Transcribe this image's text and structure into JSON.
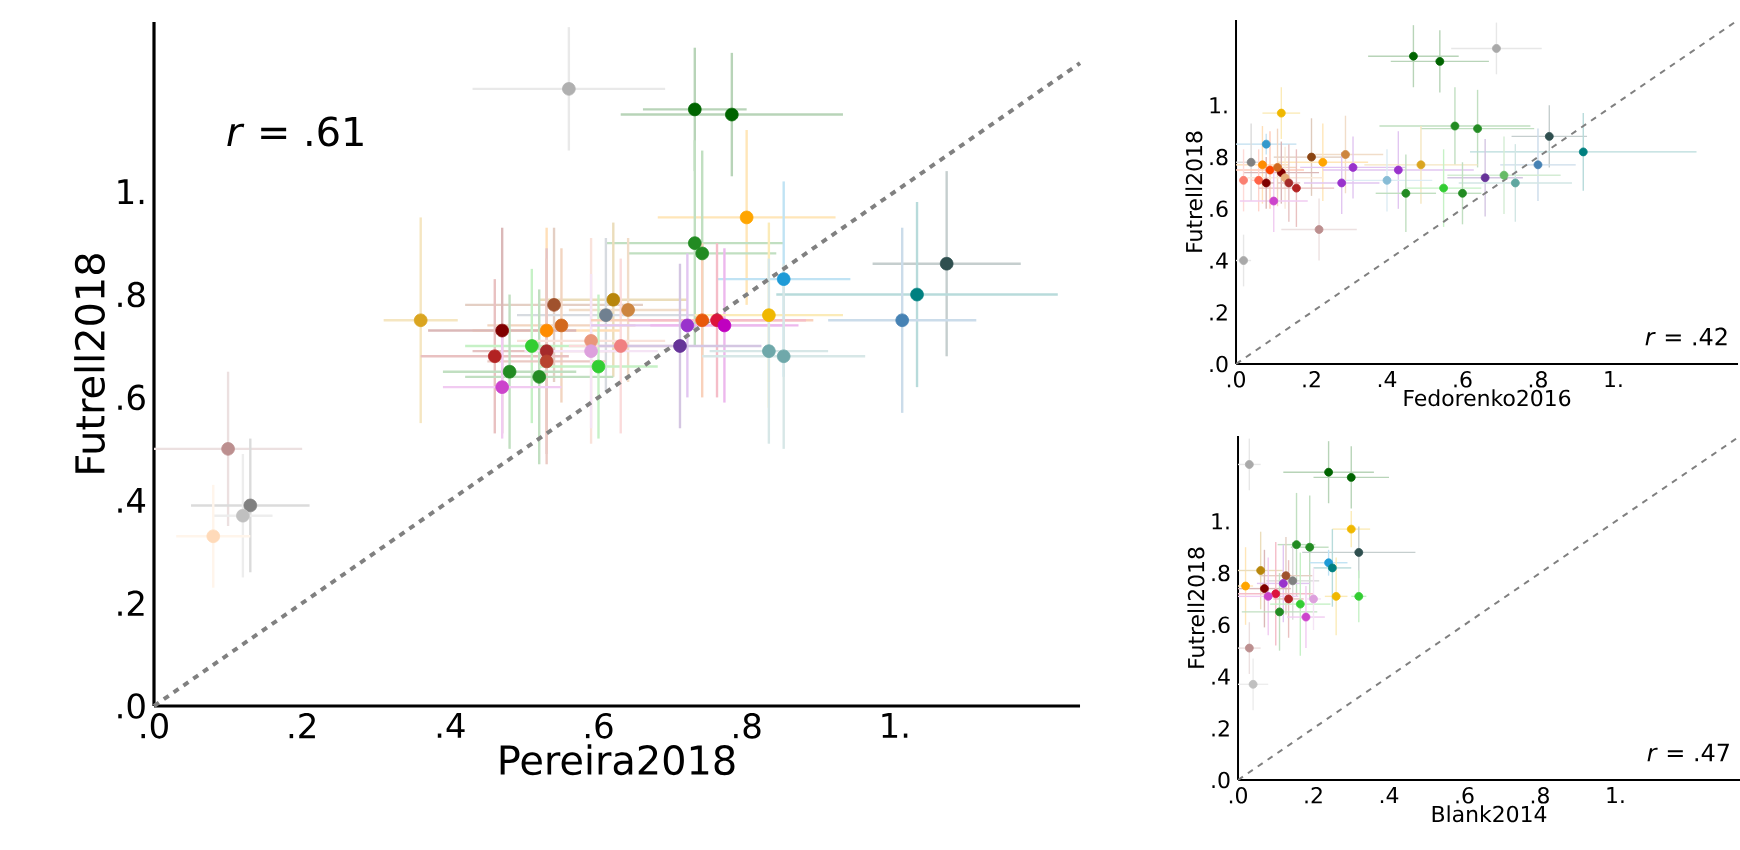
{
  "chart_data": [
    {
      "type": "scatter",
      "xlabel": "Pereira2018",
      "ylabel": "Futrell2018",
      "annotations": [
        "*r* = .61"
      ],
      "xlim": [
        0,
        1.25
      ],
      "ylim": [
        0,
        1.33
      ],
      "marker": "circle",
      "xticks": [
        {
          "value": 0,
          "label": ".0"
        },
        {
          "value": 0.2,
          "label": ".2"
        },
        {
          "value": 0.4,
          "label": ".4"
        },
        {
          "value": 0.6,
          "label": ".6"
        },
        {
          "value": 0.8,
          "label": ".8"
        },
        {
          "value": 1,
          "label": "1."
        }
      ],
      "yticks": [
        {
          "value": 0,
          "label": ".0"
        },
        {
          "value": 0.2,
          "label": ".2"
        },
        {
          "value": 0.4,
          "label": ".4"
        },
        {
          "value": 0.6,
          "label": ".6"
        },
        {
          "value": 0.8,
          "label": ".8"
        },
        {
          "value": 1,
          "label": "1."
        }
      ],
      "series": [
        {
          "x": [
            0.56,
            0.73,
            0.78,
            0.8,
            0.73,
            0.74,
            1.07,
            0.85,
            1.03,
            1.01,
            0.36,
            0.54,
            0.62,
            0.61,
            0.64,
            0.55,
            0.53,
            0.47,
            0.46,
            0.51,
            0.53,
            0.53,
            0.48,
            0.52,
            0.47,
            0.59,
            0.59,
            0.6,
            0.63,
            0.72,
            0.74,
            0.76,
            0.77,
            0.71,
            0.83,
            0.83,
            0.85,
            0.1,
            0.13,
            0.12,
            0.08
          ],
          "values": [
            1.2,
            1.16,
            1.15,
            0.95,
            0.9,
            0.88,
            0.86,
            0.83,
            0.8,
            0.75,
            0.75,
            0.78,
            0.79,
            0.76,
            0.77,
            0.74,
            0.73,
            0.73,
            0.68,
            0.7,
            0.69,
            0.67,
            0.65,
            0.64,
            0.62,
            0.71,
            0.69,
            0.66,
            0.7,
            0.74,
            0.75,
            0.75,
            0.74,
            0.7,
            0.76,
            0.69,
            0.68,
            0.5,
            0.39,
            0.37,
            0.33
          ],
          "colors": [
            "#b0b0b0",
            "#006400",
            "#006400",
            "#ffa500",
            "#228b22",
            "#228b22",
            "#2f4f4f",
            "#1e9bd7",
            "#008080",
            "#4682b4",
            "#daa520",
            "#a0522d",
            "#b8860b",
            "#708090",
            "#cd853f",
            "#d2691e",
            "#ff8c00",
            "#800000",
            "#b22222",
            "#32cd32",
            "#a52a2a",
            "#b8432e",
            "#228b22",
            "#228b22",
            "#cc44cc",
            "#e9967a",
            "#dda0dd",
            "#32cd32",
            "#f08080",
            "#9932cc",
            "#e8590c",
            "#dc143c",
            "#c000c0",
            "#663399",
            "#f0b800",
            "#6fa8aa",
            "#6fa8aa",
            "#bc8f8f",
            "#808080",
            "#c0c0c0",
            "#ffdab9"
          ],
          "xerrors": [
            0.13,
            0.07,
            0.15,
            0.12,
            0.12,
            0.1,
            0.1,
            0.09,
            0.19,
            0.1,
            0.05,
            0.12,
            0.1,
            0.12,
            0.08,
            0.1,
            0.1,
            0.1,
            0.1,
            0.09,
            0.1,
            0.08,
            0.09,
            0.1,
            0.08,
            0.1,
            0.09,
            0.08,
            0.07,
            0.13,
            0.15,
            0.12,
            0.1,
            0.11,
            0.1,
            0.08,
            0.11,
            0.1,
            0.08,
            0.04,
            0.05
          ],
          "errors": [
            0.12,
            0.12,
            0.12,
            0.17,
            0.2,
            0.2,
            0.18,
            0.19,
            0.18,
            0.18,
            0.2,
            0.15,
            0.15,
            0.15,
            0.14,
            0.15,
            0.2,
            0.2,
            0.15,
            0.15,
            0.2,
            0.2,
            0.15,
            0.17,
            0.1,
            0.2,
            0.15,
            0.14,
            0.17,
            0.14,
            0.15,
            0.15,
            0.15,
            0.16,
            0.18,
            0.18,
            0.18,
            0.15,
            0.13,
            0.12,
            0.1
          ]
        },
        {
          "type": "line",
          "marker": "none",
          "x": [
            0,
            1.25
          ],
          "values": [
            0,
            1.25
          ],
          "color": "#808080",
          "line_style": "dashed"
        }
      ]
    },
    {
      "type": "scatter",
      "xlabel": "Fedorenko2016",
      "ylabel": "Futrell2018",
      "annotations": [
        "*r* = .42"
      ],
      "xlim": [
        0,
        1.33
      ],
      "ylim": [
        0,
        1.33
      ],
      "marker": "circle",
      "xticks": [
        {
          "value": 0,
          "label": ".0"
        },
        {
          "value": 0.2,
          "label": ".2"
        },
        {
          "value": 0.4,
          "label": ".4"
        },
        {
          "value": 0.6,
          "label": ".6"
        },
        {
          "value": 0.8,
          "label": ".8"
        },
        {
          "value": 1,
          "label": "1."
        }
      ],
      "yticks": [
        {
          "value": 0,
          "label": ".0"
        },
        {
          "value": 0.2,
          "label": ".2"
        },
        {
          "value": 0.4,
          "label": ".4"
        },
        {
          "value": 0.6,
          "label": ".6"
        },
        {
          "value": 0.8,
          "label": ".8"
        },
        {
          "value": 1,
          "label": "1."
        }
      ],
      "series": [
        {
          "x": [
            0.69,
            0.47,
            0.54,
            0.58,
            0.64,
            0.83,
            0.92,
            0.8,
            0.12,
            0.08,
            0.2,
            0.29,
            0.23,
            0.31,
            0.43,
            0.49,
            0.4,
            0.28,
            0.66,
            0.71,
            0.74,
            0.45,
            0.55,
            0.6,
            0.04,
            0.07,
            0.09,
            0.12,
            0.11,
            0.02,
            0.06,
            0.13,
            0.14,
            0.16,
            0.1,
            0.08,
            0.22,
            0.02
          ],
          "values": [
            1.22,
            1.19,
            1.17,
            0.92,
            0.91,
            0.88,
            0.82,
            0.77,
            0.97,
            0.85,
            0.8,
            0.81,
            0.78,
            0.76,
            0.75,
            0.77,
            0.71,
            0.7,
            0.72,
            0.73,
            0.7,
            0.66,
            0.68,
            0.66,
            0.78,
            0.77,
            0.75,
            0.74,
            0.76,
            0.71,
            0.71,
            0.72,
            0.7,
            0.68,
            0.63,
            0.7,
            0.52,
            0.4
          ],
          "colors": [
            "#a9a9a9",
            "#006400",
            "#006400",
            "#228b22",
            "#228b22",
            "#2f4f4f",
            "#008080",
            "#4682b4",
            "#f0b800",
            "#3399cc",
            "#8b4513",
            "#cd853f",
            "#ffa500",
            "#9932cc",
            "#9932cc",
            "#daa520",
            "#87bcd6",
            "#9932cc",
            "#663399",
            "#66bb66",
            "#5fa7a0",
            "#228b22",
            "#32cd32",
            "#228b22",
            "#808080",
            "#ff8c00",
            "#ff4500",
            "#800000",
            "#d2691e",
            "#fa8072",
            "#ff6347",
            "#e9b07a",
            "#a52a2a",
            "#b22222",
            "#cc44cc",
            "#800000",
            "#bc8f8f",
            "#a9a9a9"
          ],
          "xerrors": [
            0.12,
            0.12,
            0.13,
            0.2,
            0.15,
            0.1,
            0.3,
            0.1,
            0.05,
            0.08,
            0.1,
            0.1,
            0.12,
            0.14,
            0.2,
            0.15,
            0.12,
            0.1,
            0.1,
            0.15,
            0.15,
            0.08,
            0.1,
            0.05,
            0.04,
            0.07,
            0.09,
            0.1,
            0.05,
            0.01,
            0.02,
            0.1,
            0.03,
            0.1,
            0.09,
            0.02,
            0.1,
            0.02
          ],
          "errors": [
            0.1,
            0.12,
            0.12,
            0.15,
            0.15,
            0.12,
            0.15,
            0.14,
            0.1,
            0.04,
            0.15,
            0.15,
            0.15,
            0.12,
            0.15,
            0.15,
            0.12,
            0.12,
            0.15,
            0.15,
            0.15,
            0.15,
            0.15,
            0.12,
            0.15,
            0.15,
            0.15,
            0.12,
            0.15,
            0.12,
            0.12,
            0.12,
            0.15,
            0.15,
            0.12,
            0.1,
            0.12,
            0.1
          ]
        },
        {
          "type": "line",
          "marker": "none",
          "x": [
            0,
            1.33
          ],
          "values": [
            0,
            1.33
          ],
          "color": "#808080",
          "line_style": "dashed"
        }
      ]
    },
    {
      "type": "scatter",
      "xlabel": "Blank2014",
      "ylabel": "Futrell2018",
      "annotations": [
        "*r* = .47"
      ],
      "xlim": [
        0,
        1.33
      ],
      "ylim": [
        0,
        1.33
      ],
      "marker": "circle",
      "xticks": [
        {
          "value": 0,
          "label": ".0"
        },
        {
          "value": 0.2,
          "label": ".2"
        },
        {
          "value": 0.4,
          "label": ".4"
        },
        {
          "value": 0.6,
          "label": ".6"
        },
        {
          "value": 0.8,
          "label": ".8"
        },
        {
          "value": 1,
          "label": "1."
        }
      ],
      "yticks": [
        {
          "value": 0,
          "label": ".0"
        },
        {
          "value": 0.2,
          "label": ".2"
        },
        {
          "value": 0.4,
          "label": ".4"
        },
        {
          "value": 0.6,
          "label": ".6"
        },
        {
          "value": 0.8,
          "label": ".8"
        },
        {
          "value": 1,
          "label": "1."
        }
      ],
      "series": [
        {
          "x": [
            0.03,
            0.24,
            0.3,
            0.155,
            0.19,
            0.3,
            0.32,
            0.24,
            0.25,
            0.02,
            0.06,
            0.145,
            0.127,
            0.12,
            0.07,
            0.1,
            0.08,
            0.134,
            0.11,
            0.165,
            0.32,
            0.26,
            0.18,
            0.2,
            0.03,
            0.04
          ],
          "values": [
            1.22,
            1.19,
            1.17,
            0.91,
            0.9,
            0.97,
            0.88,
            0.84,
            0.82,
            0.75,
            0.81,
            0.77,
            0.79,
            0.76,
            0.74,
            0.72,
            0.71,
            0.7,
            0.65,
            0.68,
            0.71,
            0.71,
            0.63,
            0.7,
            0.51,
            0.37
          ],
          "colors": [
            "#a9a9a9",
            "#006400",
            "#006400",
            "#228b22",
            "#228b22",
            "#f0b800",
            "#2f4f4f",
            "#1e9bd7",
            "#008080",
            "#ffa500",
            "#b8860b",
            "#808080",
            "#a0522d",
            "#9932cc",
            "#800000",
            "#dc143c",
            "#cc44cc",
            "#b22222",
            "#228b22",
            "#32cd32",
            "#32cd32",
            "#f0b800",
            "#cc44cc",
            "#dda0dd",
            "#bc8f8f",
            "#c0c0c0"
          ],
          "xerrors": [
            0.03,
            0.12,
            0.1,
            0.05,
            0.05,
            0.05,
            0.15,
            0.05,
            0.05,
            0.02,
            0.06,
            0.07,
            0.07,
            0.07,
            0.07,
            0.1,
            0.08,
            0.04,
            0.1,
            0.08,
            0.02,
            0.03,
            0.05,
            0.02,
            0.03,
            0.04
          ],
          "errors": [
            0.1,
            0.12,
            0.12,
            0.2,
            0.2,
            0.07,
            0.1,
            0.05,
            0.15,
            0.15,
            0.15,
            0.15,
            0.15,
            0.15,
            0.15,
            0.2,
            0.15,
            0.15,
            0.15,
            0.2,
            0.1,
            0.15,
            0.12,
            0.12,
            0.1,
            0.1
          ]
        },
        {
          "type": "line",
          "marker": "none",
          "x": [
            0,
            1.33
          ],
          "values": [
            0,
            1.33
          ],
          "color": "#808080",
          "line_style": "dashed"
        }
      ]
    }
  ]
}
